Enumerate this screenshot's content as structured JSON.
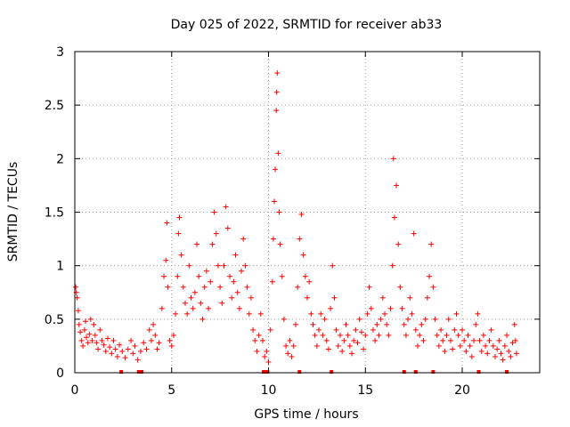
{
  "chart_data": {
    "type": "scatter",
    "title": "Day 025 of 2022, SRMTID for receiver ab33",
    "xlabel": "GPS time / hours",
    "ylabel": "SRMTID / TECUs",
    "xlim": [
      0,
      24
    ],
    "ylim": [
      0,
      3
    ],
    "xticks": [
      0,
      5,
      10,
      15,
      20
    ],
    "xtick_labels": [
      "0",
      "5",
      "10",
      "15",
      "20"
    ],
    "yticks": [
      0,
      0.5,
      1,
      1.5,
      2,
      2.5,
      3
    ],
    "ytick_labels": [
      "0",
      "0.5",
      "1",
      "1.5",
      "2",
      "2.5",
      "3"
    ],
    "grid": true,
    "marker": "+",
    "series": [
      {
        "name": "SRMTID",
        "color": "#ff0000",
        "points": [
          [
            0.05,
            0.8
          ],
          [
            0.08,
            0.75
          ],
          [
            0.12,
            0.7
          ],
          [
            0.18,
            0.58
          ],
          [
            0.22,
            0.45
          ],
          [
            0.28,
            0.38
          ],
          [
            0.35,
            0.3
          ],
          [
            0.42,
            0.25
          ],
          [
            0.5,
            0.4
          ],
          [
            0.55,
            0.48
          ],
          [
            0.6,
            0.33
          ],
          [
            0.68,
            0.28
          ],
          [
            0.75,
            0.36
          ],
          [
            0.82,
            0.5
          ],
          [
            0.9,
            0.3
          ],
          [
            0.98,
            0.45
          ],
          [
            1.05,
            0.35
          ],
          [
            1.12,
            0.28
          ],
          [
            1.2,
            0.22
          ],
          [
            1.3,
            0.4
          ],
          [
            1.4,
            0.3
          ],
          [
            1.5,
            0.26
          ],
          [
            1.6,
            0.2
          ],
          [
            1.7,
            0.32
          ],
          [
            1.8,
            0.24
          ],
          [
            1.9,
            0.18
          ],
          [
            2.0,
            0.3
          ],
          [
            2.1,
            0.22
          ],
          [
            2.2,
            0.15
          ],
          [
            2.3,
            0.26
          ],
          [
            2.45,
            0.2
          ],
          [
            2.6,
            0.14
          ],
          [
            2.75,
            0.22
          ],
          [
            2.9,
            0.3
          ],
          [
            3.0,
            0.18
          ],
          [
            3.1,
            0.25
          ],
          [
            3.25,
            0.12
          ],
          [
            3.4,
            0.2
          ],
          [
            3.55,
            0.28
          ],
          [
            3.7,
            0.22
          ],
          [
            3.85,
            0.4
          ],
          [
            3.95,
            0.3
          ],
          [
            4.05,
            0.45
          ],
          [
            4.15,
            0.35
          ],
          [
            4.25,
            0.22
          ],
          [
            4.35,
            0.28
          ],
          [
            4.5,
            0.6
          ],
          [
            4.6,
            0.9
          ],
          [
            4.7,
            1.05
          ],
          [
            4.75,
            1.4
          ],
          [
            4.8,
            0.8
          ],
          [
            4.9,
            0.3
          ],
          [
            5.0,
            0.25
          ],
          [
            5.1,
            0.35
          ],
          [
            5.2,
            0.55
          ],
          [
            5.3,
            0.9
          ],
          [
            5.35,
            1.3
          ],
          [
            5.4,
            1.45
          ],
          [
            5.5,
            1.1
          ],
          [
            5.6,
            0.8
          ],
          [
            5.7,
            0.65
          ],
          [
            5.8,
            0.55
          ],
          [
            5.9,
            1.0
          ],
          [
            6.0,
            0.7
          ],
          [
            6.1,
            0.6
          ],
          [
            6.2,
            0.75
          ],
          [
            6.3,
            1.2
          ],
          [
            6.4,
            0.9
          ],
          [
            6.5,
            0.65
          ],
          [
            6.6,
            0.5
          ],
          [
            6.7,
            0.8
          ],
          [
            6.8,
            0.95
          ],
          [
            6.9,
            0.6
          ],
          [
            7.0,
            0.85
          ],
          [
            7.1,
            1.2
          ],
          [
            7.2,
            1.5
          ],
          [
            7.3,
            1.3
          ],
          [
            7.4,
            1.0
          ],
          [
            7.5,
            0.8
          ],
          [
            7.6,
            0.65
          ],
          [
            7.7,
            1.0
          ],
          [
            7.8,
            1.55
          ],
          [
            7.9,
            1.35
          ],
          [
            8.0,
            0.9
          ],
          [
            8.1,
            0.7
          ],
          [
            8.2,
            0.85
          ],
          [
            8.3,
            1.1
          ],
          [
            8.4,
            0.75
          ],
          [
            8.5,
            0.6
          ],
          [
            8.6,
            0.95
          ],
          [
            8.7,
            1.25
          ],
          [
            8.8,
            1.0
          ],
          [
            8.9,
            0.8
          ],
          [
            9.0,
            0.55
          ],
          [
            9.1,
            0.7
          ],
          [
            9.2,
            0.4
          ],
          [
            9.3,
            0.3
          ],
          [
            9.4,
            0.2
          ],
          [
            9.5,
            0.35
          ],
          [
            9.6,
            0.55
          ],
          [
            9.7,
            0.3
          ],
          [
            9.8,
            0.15
          ],
          [
            9.9,
            0.2
          ],
          [
            10.0,
            0.1
          ],
          [
            10.1,
            0.4
          ],
          [
            10.2,
            0.85
          ],
          [
            10.25,
            1.25
          ],
          [
            10.3,
            1.6
          ],
          [
            10.35,
            1.9
          ],
          [
            10.4,
            2.45
          ],
          [
            10.42,
            2.62
          ],
          [
            10.45,
            2.8
          ],
          [
            10.5,
            2.05
          ],
          [
            10.55,
            1.5
          ],
          [
            10.6,
            1.2
          ],
          [
            10.7,
            0.9
          ],
          [
            10.8,
            0.5
          ],
          [
            10.9,
            0.25
          ],
          [
            11.0,
            0.18
          ],
          [
            11.1,
            0.3
          ],
          [
            11.2,
            0.15
          ],
          [
            11.3,
            0.25
          ],
          [
            11.4,
            0.45
          ],
          [
            11.5,
            0.8
          ],
          [
            11.6,
            1.25
          ],
          [
            11.7,
            1.48
          ],
          [
            11.8,
            1.1
          ],
          [
            11.9,
            0.9
          ],
          [
            12.0,
            0.7
          ],
          [
            12.1,
            0.85
          ],
          [
            12.2,
            0.55
          ],
          [
            12.3,
            0.45
          ],
          [
            12.4,
            0.35
          ],
          [
            12.5,
            0.25
          ],
          [
            12.6,
            0.4
          ],
          [
            12.7,
            0.55
          ],
          [
            12.8,
            0.35
          ],
          [
            12.9,
            0.5
          ],
          [
            13.0,
            0.3
          ],
          [
            13.1,
            0.22
          ],
          [
            13.2,
            0.6
          ],
          [
            13.3,
            1.0
          ],
          [
            13.4,
            0.7
          ],
          [
            13.5,
            0.4
          ],
          [
            13.6,
            0.25
          ],
          [
            13.7,
            0.35
          ],
          [
            13.8,
            0.2
          ],
          [
            13.9,
            0.3
          ],
          [
            14.0,
            0.45
          ],
          [
            14.1,
            0.35
          ],
          [
            14.2,
            0.25
          ],
          [
            14.3,
            0.18
          ],
          [
            14.4,
            0.3
          ],
          [
            14.5,
            0.4
          ],
          [
            14.6,
            0.28
          ],
          [
            14.7,
            0.5
          ],
          [
            14.8,
            0.38
          ],
          [
            14.9,
            0.22
          ],
          [
            15.0,
            0.35
          ],
          [
            15.1,
            0.55
          ],
          [
            15.2,
            0.8
          ],
          [
            15.3,
            0.6
          ],
          [
            15.4,
            0.4
          ],
          [
            15.5,
            0.3
          ],
          [
            15.6,
            0.45
          ],
          [
            15.7,
            0.35
          ],
          [
            15.8,
            0.5
          ],
          [
            15.9,
            0.7
          ],
          [
            16.0,
            0.55
          ],
          [
            16.1,
            0.45
          ],
          [
            16.2,
            0.35
          ],
          [
            16.3,
            0.6
          ],
          [
            16.4,
            1.0
          ],
          [
            16.45,
            2.0
          ],
          [
            16.5,
            1.45
          ],
          [
            16.6,
            1.75
          ],
          [
            16.7,
            1.2
          ],
          [
            16.8,
            0.8
          ],
          [
            16.9,
            0.6
          ],
          [
            17.0,
            0.45
          ],
          [
            17.1,
            0.35
          ],
          [
            17.2,
            0.5
          ],
          [
            17.3,
            0.7
          ],
          [
            17.4,
            0.55
          ],
          [
            17.5,
            1.3
          ],
          [
            17.6,
            0.4
          ],
          [
            17.7,
            0.25
          ],
          [
            17.8,
            0.35
          ],
          [
            17.9,
            0.45
          ],
          [
            18.0,
            0.3
          ],
          [
            18.1,
            0.5
          ],
          [
            18.2,
            0.7
          ],
          [
            18.3,
            0.9
          ],
          [
            18.4,
            1.2
          ],
          [
            18.5,
            0.8
          ],
          [
            18.6,
            0.5
          ],
          [
            18.7,
            0.35
          ],
          [
            18.8,
            0.25
          ],
          [
            18.9,
            0.4
          ],
          [
            19.0,
            0.3
          ],
          [
            19.1,
            0.2
          ],
          [
            19.2,
            0.35
          ],
          [
            19.3,
            0.5
          ],
          [
            19.4,
            0.3
          ],
          [
            19.5,
            0.22
          ],
          [
            19.6,
            0.4
          ],
          [
            19.7,
            0.55
          ],
          [
            19.8,
            0.35
          ],
          [
            19.9,
            0.25
          ],
          [
            20.0,
            0.4
          ],
          [
            20.1,
            0.3
          ],
          [
            20.2,
            0.2
          ],
          [
            20.3,
            0.35
          ],
          [
            20.4,
            0.25
          ],
          [
            20.5,
            0.15
          ],
          [
            20.6,
            0.3
          ],
          [
            20.7,
            0.45
          ],
          [
            20.8,
            0.55
          ],
          [
            20.9,
            0.3
          ],
          [
            21.0,
            0.2
          ],
          [
            21.1,
            0.35
          ],
          [
            21.2,
            0.25
          ],
          [
            21.3,
            0.18
          ],
          [
            21.4,
            0.3
          ],
          [
            21.5,
            0.4
          ],
          [
            21.6,
            0.25
          ],
          [
            21.7,
            0.15
          ],
          [
            21.8,
            0.22
          ],
          [
            21.9,
            0.3
          ],
          [
            22.0,
            0.18
          ],
          [
            22.1,
            0.12
          ],
          [
            22.2,
            0.25
          ],
          [
            22.3,
            0.35
          ],
          [
            22.4,
            0.2
          ],
          [
            22.5,
            0.15
          ],
          [
            22.6,
            0.28
          ],
          [
            22.7,
            0.45
          ],
          [
            22.75,
            0.3
          ],
          [
            22.8,
            0.18
          ]
        ],
        "baseline_markers_x": [
          2.4,
          3.3,
          3.45,
          9.75,
          9.85,
          9.95,
          11.6,
          13.25,
          17.0,
          17.6,
          18.5,
          20.85,
          22.3
        ]
      }
    ]
  }
}
